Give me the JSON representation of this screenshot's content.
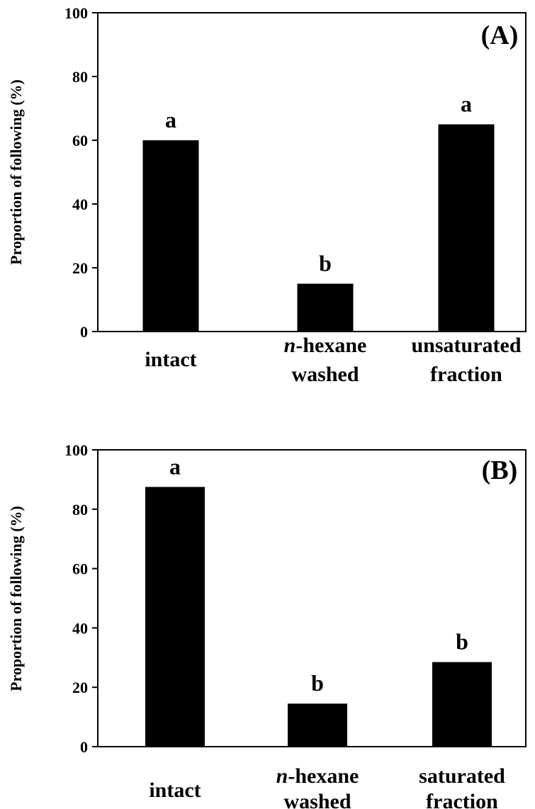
{
  "chart_data": [
    {
      "type": "bar",
      "panel_label": "(A)",
      "ylabel": "Proportion of  following (%)",
      "ylim": [
        0,
        100
      ],
      "yticks": [
        "0",
        "20",
        "40",
        "60",
        "80",
        "100"
      ],
      "categories": [
        {
          "line1_italic": "",
          "line1": "intact",
          "line2": ""
        },
        {
          "line1_italic": "n",
          "line1": "-hexane",
          "line2": "washed"
        },
        {
          "line1_italic": "",
          "line1": "unsaturated",
          "line2": "fraction"
        }
      ],
      "values": [
        60,
        15,
        65
      ],
      "significance": [
        "a",
        "b",
        "a"
      ],
      "bar_color": "#000000"
    },
    {
      "type": "bar",
      "panel_label": "(B)",
      "ylabel": "Proportion of following (%)",
      "ylim": [
        0,
        100
      ],
      "yticks": [
        "0",
        "20",
        "40",
        "60",
        "80",
        "100"
      ],
      "categories": [
        {
          "line1_italic": "",
          "line1": "intact",
          "line2": ""
        },
        {
          "line1_italic": "n",
          "line1": "-hexane",
          "line2": "washed"
        },
        {
          "line1_italic": "",
          "line1": "saturated",
          "line2": "fraction"
        }
      ],
      "values": [
        87.5,
        14.5,
        28.5
      ],
      "significance": [
        "a",
        "b",
        "b"
      ],
      "bar_color": "#000000"
    }
  ]
}
